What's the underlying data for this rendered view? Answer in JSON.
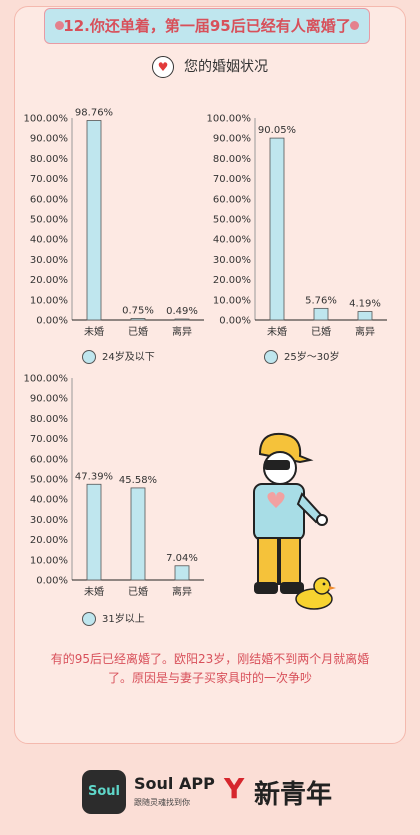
{
  "title": "12.你还单着，第一届95后已经有人离婚了",
  "section_title": "您的婚姻状况",
  "note": "有的95后已经离婚了。欧阳23岁，刚结婚不到两个月就离婚了。原因是与妻子买家具时的一次争吵",
  "footer": {
    "soul_logo": "Soul",
    "soul_name": "Soul APP",
    "soul_slogan": "跟随灵魂找到你",
    "partner_name": "新青年"
  },
  "colors": {
    "bar": "#bfe6ee",
    "accent": "#d8505a",
    "background": "#fbded6"
  },
  "chart_data": [
    {
      "type": "bar",
      "categories": [
        "未婚",
        "已婚",
        "离异"
      ],
      "values": [
        98.76,
        0.75,
        0.49
      ],
      "data_labels": [
        "98.76%",
        "0.75%",
        "0.49%"
      ],
      "legend": "24岁及以下",
      "ylim": [
        0,
        100
      ],
      "yticks": [
        "0.00%",
        "10.00%",
        "20.00%",
        "30.00%",
        "40.00%",
        "50.00%",
        "60.00%",
        "70.00%",
        "80.00%",
        "90.00%",
        "100.00%"
      ]
    },
    {
      "type": "bar",
      "categories": [
        "未婚",
        "已婚",
        "离异"
      ],
      "values": [
        90.05,
        5.76,
        4.19
      ],
      "data_labels": [
        "90.05%",
        "5.76%",
        "4.19%"
      ],
      "legend": "25岁～30岁",
      "ylim": [
        0,
        100
      ],
      "yticks": [
        "0.00%",
        "10.00%",
        "20.00%",
        "30.00%",
        "40.00%",
        "50.00%",
        "60.00%",
        "70.00%",
        "80.00%",
        "90.00%",
        "100.00%"
      ]
    },
    {
      "type": "bar",
      "categories": [
        "未婚",
        "已婚",
        "离异"
      ],
      "values": [
        47.39,
        45.58,
        7.04
      ],
      "data_labels": [
        "47.39%",
        "45.58%",
        "7.04%"
      ],
      "legend": "31岁以上",
      "ylim": [
        0,
        100
      ],
      "yticks": [
        "0.00%",
        "10.00%",
        "20.00%",
        "30.00%",
        "40.00%",
        "50.00%",
        "60.00%",
        "70.00%",
        "80.00%",
        "90.00%",
        "100.00%"
      ]
    }
  ]
}
